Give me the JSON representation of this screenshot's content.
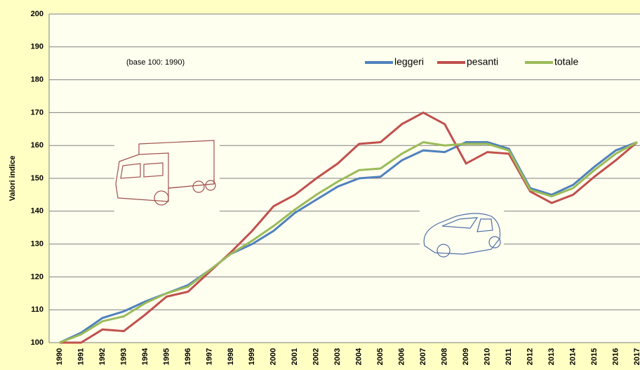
{
  "chart_data": {
    "type": "line",
    "y_label": "Valori indice",
    "annotation": "(base 100: 1990)",
    "categories": [
      "1990",
      "1991",
      "1992",
      "1993",
      "1994",
      "1995",
      "1996",
      "1997",
      "1998",
      "1999",
      "2000",
      "2001",
      "2002",
      "2003",
      "2004",
      "2005",
      "2006",
      "2007",
      "2008",
      "2009",
      "2010",
      "2011",
      "2012",
      "2013",
      "2014",
      "2015",
      "2016",
      "2017"
    ],
    "series": [
      {
        "name": "leggeri",
        "color": "#4f81bd",
        "values": [
          100,
          103,
          107.5,
          109.5,
          112.5,
          115,
          117.5,
          122,
          127,
          130,
          134,
          139.5,
          143.5,
          147.5,
          150,
          150.5,
          155.5,
          158.5,
          158,
          161,
          161,
          159,
          147,
          145,
          148,
          153.5,
          158.5,
          161
        ]
      },
      {
        "name": "pesanti",
        "color": "#c0504d",
        "values": [
          100,
          100,
          104,
          103.5,
          108.5,
          114,
          115.5,
          121.5,
          127.5,
          134,
          141.5,
          145,
          150,
          154.5,
          160.5,
          161,
          166.5,
          170,
          166.5,
          154.5,
          158,
          157.5,
          146,
          142.5,
          145,
          150.5,
          155.5,
          161
        ]
      },
      {
        "name": "totale",
        "color": "#9bbb59",
        "values": [
          100,
          102.5,
          106.5,
          108,
          112,
          115,
          117,
          122,
          127,
          131,
          135.5,
          140.5,
          145,
          149,
          152.5,
          153,
          157.5,
          161,
          160,
          160.5,
          160.5,
          158.5,
          146.5,
          144.5,
          147,
          152.5,
          157.5,
          161
        ]
      }
    ],
    "ylim": [
      100,
      200
    ],
    "yticks": [
      100,
      110,
      120,
      130,
      140,
      150,
      160,
      170,
      180,
      190,
      200
    ],
    "grid": true
  }
}
